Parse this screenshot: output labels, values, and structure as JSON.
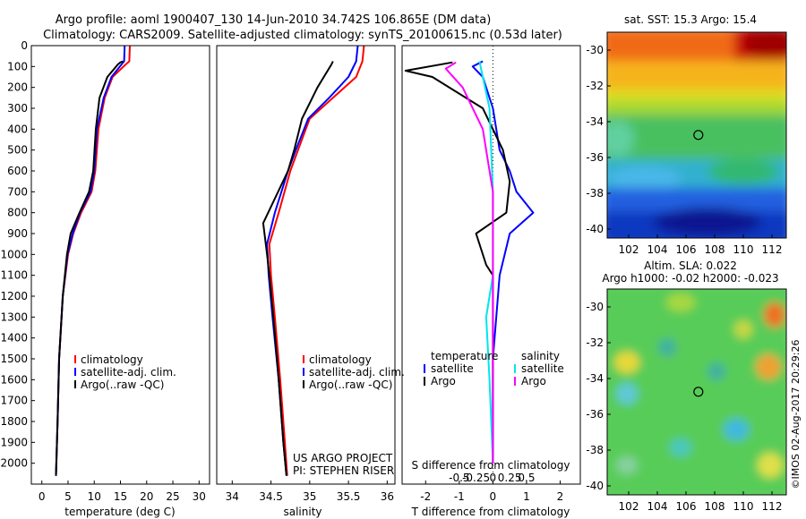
{
  "header": {
    "title_line1": "Argo profile: aoml 1900407_130 14-Jun-2010 34.742S 106.865E (DM data)",
    "title_line2": "Climatology: CARS2009. Satellite-adjusted climatology: synTS_20100615.nc (0.53d later)"
  },
  "side_stamp": "©IMOS 02-Aug-2017 20:29:26",
  "credit": {
    "line1": "US ARGO PROJECT",
    "line2": "PI: STEPHEN RISER"
  },
  "colors": {
    "climatology": "#ff0000",
    "satellite": "#0000ff",
    "argo": "#000000",
    "sal_satellite": "#00e5ee",
    "sal_argo": "#ff00ff"
  },
  "chart_data": [
    {
      "type": "line",
      "id": "temperature",
      "xlabel": "temperature (deg C)",
      "ylabel": "",
      "xlim": [
        -2,
        32
      ],
      "ylim": [
        2100,
        0
      ],
      "xticks": [
        0,
        5,
        10,
        15,
        20,
        25,
        30
      ],
      "yticks": [
        0,
        100,
        200,
        300,
        400,
        500,
        600,
        700,
        800,
        900,
        1000,
        1100,
        1200,
        1300,
        1400,
        1500,
        1600,
        1700,
        1800,
        1900,
        2000
      ],
      "legend": [
        "climatology",
        "satellite-adj. clim.",
        "Argo(..raw -QC)"
      ],
      "legend_position": "lower-middle",
      "series": [
        {
          "name": "climatology",
          "color": "#ff0000",
          "points": [
            [
              16.8,
              0
            ],
            [
              16.7,
              75
            ],
            [
              16.0,
              90
            ],
            [
              13.5,
              150
            ],
            [
              12.0,
              250
            ],
            [
              10.8,
              400
            ],
            [
              10.2,
              600
            ],
            [
              9.5,
              700
            ],
            [
              7.5,
              800
            ],
            [
              6.0,
              900
            ],
            [
              5.0,
              1000
            ],
            [
              4.0,
              1200
            ],
            [
              3.3,
              1500
            ],
            [
              3.0,
              1800
            ],
            [
              2.7,
              2060
            ]
          ]
        },
        {
          "name": "satellite-adj. clim.",
          "color": "#0000ff",
          "points": [
            [
              15.8,
              0
            ],
            [
              15.7,
              75
            ],
            [
              15.2,
              90
            ],
            [
              13.3,
              150
            ],
            [
              11.8,
              250
            ],
            [
              10.5,
              400
            ],
            [
              10.0,
              600
            ],
            [
              9.3,
              700
            ],
            [
              7.3,
              800
            ],
            [
              5.9,
              900
            ],
            [
              4.9,
              1000
            ],
            [
              4.0,
              1200
            ],
            [
              3.3,
              1500
            ],
            [
              3.0,
              1800
            ],
            [
              2.7,
              2060
            ]
          ]
        },
        {
          "name": "Argo(..raw -QC)",
          "color": "#000000",
          "points": [
            [
              15.5,
              75
            ],
            [
              15.0,
              80
            ],
            [
              14.5,
              90
            ],
            [
              12.5,
              150
            ],
            [
              11.0,
              250
            ],
            [
              10.3,
              400
            ],
            [
              9.8,
              600
            ],
            [
              9.0,
              700
            ],
            [
              7.2,
              800
            ],
            [
              5.5,
              900
            ],
            [
              4.8,
              1000
            ],
            [
              4.0,
              1200
            ],
            [
              3.3,
              1500
            ],
            [
              3.0,
              1800
            ],
            [
              2.7,
              2060
            ]
          ]
        }
      ]
    },
    {
      "type": "line",
      "id": "salinity",
      "xlabel": "salinity",
      "ylabel": "",
      "xlim": [
        33.8,
        36.1
      ],
      "ylim": [
        2100,
        0
      ],
      "xticks": [
        34,
        34.5,
        35,
        35.5,
        36
      ],
      "xtick_labels": [
        "34",
        "34.5",
        "35",
        "35.5",
        "36"
      ],
      "legend": [
        "climatology",
        "satellite-adj. clim.",
        "Argo(..raw -QC)"
      ],
      "legend_position": "lower-middle",
      "series": [
        {
          "name": "climatology",
          "color": "#ff0000",
          "points": [
            [
              35.7,
              0
            ],
            [
              35.68,
              75
            ],
            [
              35.6,
              150
            ],
            [
              35.3,
              250
            ],
            [
              35.0,
              350
            ],
            [
              34.85,
              500
            ],
            [
              34.75,
              600
            ],
            [
              34.6,
              800
            ],
            [
              34.48,
              950
            ],
            [
              34.5,
              1100
            ],
            [
              34.55,
              1300
            ],
            [
              34.62,
              1600
            ],
            [
              34.68,
              1900
            ],
            [
              34.71,
              2060
            ]
          ]
        },
        {
          "name": "satellite-adj. clim.",
          "color": "#0000ff",
          "points": [
            [
              35.62,
              0
            ],
            [
              35.6,
              75
            ],
            [
              35.5,
              150
            ],
            [
              35.25,
              250
            ],
            [
              34.98,
              350
            ],
            [
              34.82,
              500
            ],
            [
              34.72,
              600
            ],
            [
              34.55,
              800
            ],
            [
              34.45,
              950
            ],
            [
              34.47,
              1100
            ],
            [
              34.52,
              1300
            ],
            [
              34.6,
              1600
            ],
            [
              34.66,
              1900
            ],
            [
              34.7,
              2060
            ]
          ]
        },
        {
          "name": "Argo(..raw -QC)",
          "color": "#000000",
          "points": [
            [
              35.3,
              75
            ],
            [
              35.28,
              90
            ],
            [
              35.1,
              200
            ],
            [
              34.9,
              350
            ],
            [
              34.8,
              500
            ],
            [
              34.72,
              600
            ],
            [
              34.4,
              850
            ],
            [
              34.45,
              1000
            ],
            [
              34.48,
              1100
            ],
            [
              34.53,
              1300
            ],
            [
              34.6,
              1600
            ],
            [
              34.66,
              1900
            ],
            [
              34.7,
              2060
            ]
          ]
        }
      ]
    },
    {
      "type": "line",
      "id": "difference",
      "xlabel": "T difference from climatology",
      "xlabel_top": "S difference from climatology",
      "xlim": [
        -2.7,
        2.6
      ],
      "ylim": [
        2100,
        0
      ],
      "xticks": [
        -2,
        -1,
        0,
        1,
        2
      ],
      "s_xticks": [
        -0.5,
        -0.25,
        0,
        0.25,
        0.5
      ],
      "s_xtick_labels": [
        "-0.5",
        "-0.25",
        "0",
        "0.25",
        "0.5"
      ],
      "zero_line": "dotted",
      "legend_groups": [
        {
          "heading": "temperature",
          "items": [
            "satellite",
            "Argo"
          ]
        },
        {
          "heading": "salinity",
          "items": [
            "satellite",
            "Argo"
          ]
        }
      ],
      "series": [
        {
          "name": "satellite",
          "group": "temperature",
          "color": "#0000ff",
          "points": [
            [
              -0.3,
              75
            ],
            [
              -0.6,
              100
            ],
            [
              -0.3,
              150
            ],
            [
              0,
              300
            ],
            [
              0.2,
              500
            ],
            [
              0.5,
              600
            ],
            [
              0.7,
              700
            ],
            [
              1.2,
              800
            ],
            [
              0.5,
              900
            ],
            [
              0.2,
              1100
            ],
            [
              0,
              1500
            ],
            [
              0,
              2000
            ]
          ]
        },
        {
          "name": "Argo",
          "group": "temperature",
          "color": "#000000",
          "points": [
            [
              -1.2,
              80
            ],
            [
              -2.6,
              120
            ],
            [
              -1.8,
              150
            ],
            [
              -0.3,
              300
            ],
            [
              0.3,
              500
            ],
            [
              0.5,
              650
            ],
            [
              0.4,
              800
            ],
            [
              -0.5,
              900
            ],
            [
              -0.2,
              1050
            ],
            [
              0,
              1100
            ],
            [
              0,
              1500
            ],
            [
              0,
              2000
            ]
          ]
        },
        {
          "name": "satellite",
          "group": "salinity",
          "color": "#00e5ee",
          "points": [
            [
              -0.4,
              75
            ],
            [
              -0.3,
              150
            ],
            [
              -0.1,
              300
            ],
            [
              0,
              700
            ],
            [
              0,
              1100
            ],
            [
              -0.2,
              1300
            ],
            [
              -0.1,
              1600
            ],
            [
              0,
              2000
            ]
          ]
        },
        {
          "name": "Argo",
          "group": "salinity",
          "color": "#ff00ff",
          "points": [
            [
              -1.1,
              80
            ],
            [
              -1.4,
              110
            ],
            [
              -0.9,
              200
            ],
            [
              -0.3,
              400
            ],
            [
              0,
              700
            ],
            [
              0,
              1200
            ],
            [
              0,
              2000
            ]
          ]
        }
      ]
    },
    {
      "type": "heatmap",
      "id": "sst_map",
      "title": "sat. SST: 15.3  Argo: 15.4",
      "xlim": [
        100.5,
        113
      ],
      "ylim": [
        -40.5,
        -29
      ],
      "xticks": [
        102,
        104,
        106,
        108,
        110,
        112
      ],
      "yticks": [
        -30,
        -32,
        -34,
        -36,
        -38,
        -40
      ],
      "marker": {
        "lon": 106.865,
        "lat": -34.742
      }
    },
    {
      "type": "heatmap",
      "id": "sla_map",
      "title_line1": "Altim. SLA: 0.022",
      "title_line2": "Argo h1000: -0.02  h2000: -0.023",
      "xlim": [
        100.5,
        113
      ],
      "ylim": [
        -40.5,
        -29
      ],
      "xticks": [
        102,
        104,
        106,
        108,
        110,
        112
      ],
      "yticks": [
        -30,
        -32,
        -34,
        -36,
        -38,
        -40
      ],
      "marker": {
        "lon": 106.865,
        "lat": -34.742
      }
    }
  ]
}
